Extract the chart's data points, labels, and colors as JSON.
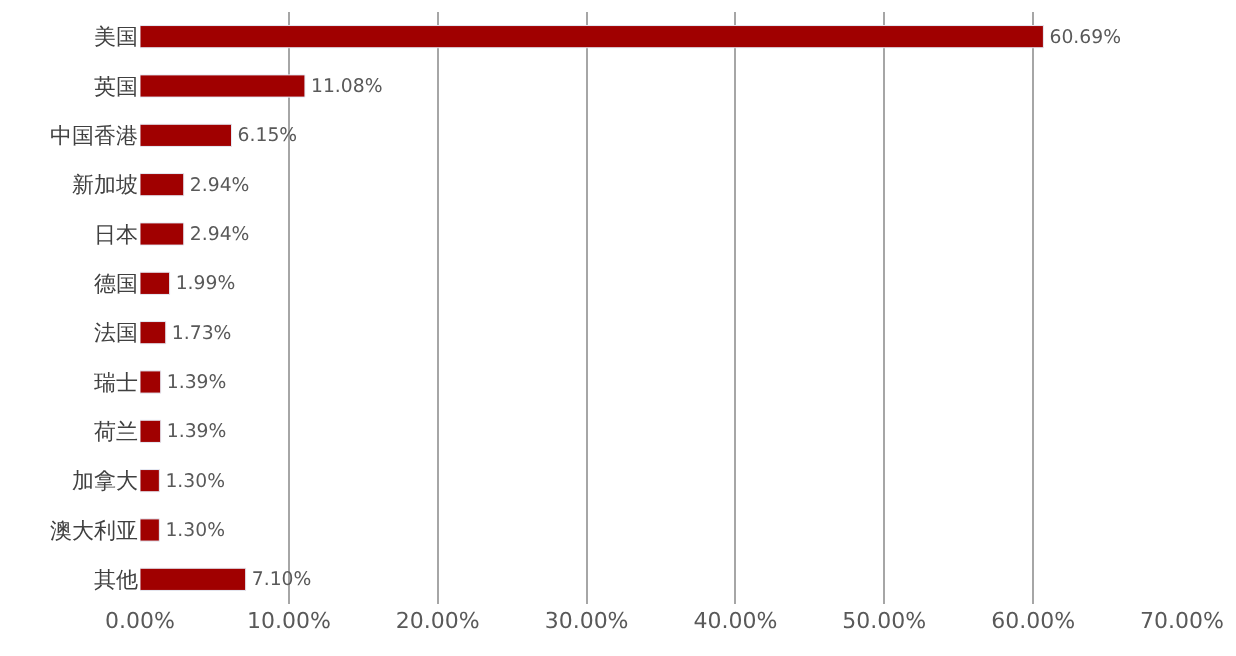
{
  "chart_data": {
    "type": "bar",
    "orientation": "horizontal",
    "categories": [
      "美国",
      "英国",
      "中国香港",
      "新加坡",
      "日本",
      "德国",
      "法国",
      "瑞士",
      "荷兰",
      "加拿大",
      "澳大利亚",
      "其他"
    ],
    "values": [
      60.69,
      11.08,
      6.15,
      2.94,
      2.94,
      1.99,
      1.73,
      1.39,
      1.39,
      1.3,
      1.3,
      7.1
    ],
    "value_labels": [
      "60.69%",
      "11.08%",
      "6.15%",
      "2.94%",
      "2.94%",
      "1.99%",
      "1.73%",
      "1.39%",
      "1.39%",
      "1.30%",
      "1.30%",
      "7.10%"
    ],
    "color": "#a00000",
    "xlim": [
      0,
      70
    ],
    "xticks": [
      {
        "value": 0,
        "label": "0.00%"
      },
      {
        "value": 10,
        "label": "10.00%"
      },
      {
        "value": 20,
        "label": "20.00%"
      },
      {
        "value": 30,
        "label": "30.00%"
      },
      {
        "value": 40,
        "label": "40.00%"
      },
      {
        "value": 50,
        "label": "50.00%"
      },
      {
        "value": 60,
        "label": "60.00%"
      },
      {
        "value": 70,
        "label": "70.00%"
      }
    ],
    "grid": "x",
    "legend": false
  }
}
